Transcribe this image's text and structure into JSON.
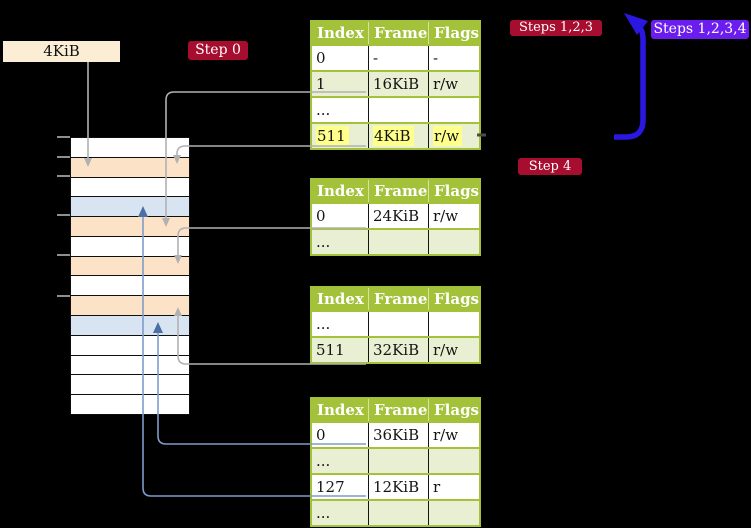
{
  "physical_memory": {
    "label": "4KiB",
    "rows": [
      {
        "fill": "white"
      },
      {
        "fill": "orange"
      },
      {
        "fill": "white"
      },
      {
        "fill": "blue"
      },
      {
        "fill": "orange"
      },
      {
        "fill": "white"
      },
      {
        "fill": "orange"
      },
      {
        "fill": "white"
      },
      {
        "fill": "orange"
      },
      {
        "fill": "blue"
      },
      {
        "fill": "white"
      },
      {
        "fill": "white"
      },
      {
        "fill": "white"
      },
      {
        "fill": "white"
      }
    ]
  },
  "badges": {
    "step0": {
      "label": "Step 0",
      "color": "#a60d2f"
    },
    "steps123": {
      "label": "Steps 1,2,3",
      "color": "#a60d2f"
    },
    "steps1234": {
      "label": "Steps 1,2,3,4",
      "color": "#6b1df0"
    },
    "step4": {
      "label": "Step 4",
      "color": "#a60d2f"
    }
  },
  "tables": [
    {
      "headers": [
        "Index",
        "Frame",
        "Flags"
      ],
      "rows": [
        {
          "index": "0",
          "frame": "-",
          "flags": "-"
        },
        {
          "index": "1",
          "frame": "16KiB",
          "flags": "r/w"
        },
        {
          "index": "...",
          "frame": "",
          "flags": ""
        },
        {
          "index": "511",
          "frame": "4KiB",
          "flags": "r/w",
          "highlight": true
        }
      ]
    },
    {
      "headers": [
        "Index",
        "Frame",
        "Flags"
      ],
      "rows": [
        {
          "index": "0",
          "frame": "24KiB",
          "flags": "r/w"
        },
        {
          "index": "...",
          "frame": "",
          "flags": ""
        }
      ]
    },
    {
      "headers": [
        "Index",
        "Frame",
        "Flags"
      ],
      "rows": [
        {
          "index": "...",
          "frame": "",
          "flags": ""
        },
        {
          "index": "511",
          "frame": "32KiB",
          "flags": "r/w"
        }
      ]
    },
    {
      "headers": [
        "Index",
        "Frame",
        "Flags"
      ],
      "rows": [
        {
          "index": "0",
          "frame": "36KiB",
          "flags": "r/w"
        },
        {
          "index": "...",
          "frame": "",
          "flags": ""
        },
        {
          "index": "127",
          "frame": "12KiB",
          "flags": "r"
        },
        {
          "index": "...",
          "frame": "",
          "flags": ""
        }
      ]
    }
  ],
  "colors": {
    "background": "#000000",
    "table_header_green": "#a3c139",
    "table_row_light_green": "#e9efd2",
    "highlight_yellow": "#ffff8c",
    "memory_pagetable_orange": "#fce3c8",
    "memory_mapped_blue": "#d9e4f2",
    "label_cream": "#fbeed5",
    "badge_red": "#a60d2f",
    "badge_violet": "#6b1df0",
    "arrow_gray": "#b1b1b1",
    "arrow_steel_blue": "#7e9cc9",
    "recursive_arrow_blue": "#2a17e2"
  }
}
